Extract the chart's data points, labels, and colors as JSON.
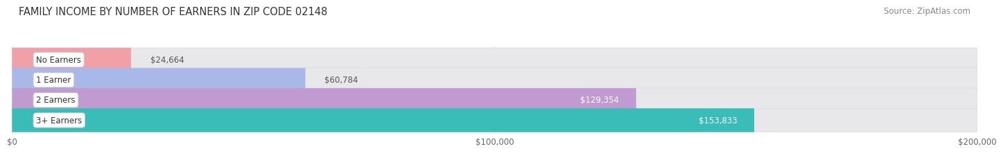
{
  "title": "FAMILY INCOME BY NUMBER OF EARNERS IN ZIP CODE 02148",
  "source": "Source: ZipAtlas.com",
  "categories": [
    "No Earners",
    "1 Earner",
    "2 Earners",
    "3+ Earners"
  ],
  "values": [
    24664,
    60784,
    129354,
    153833
  ],
  "bar_colors": [
    "#f2a0a8",
    "#a8b8e8",
    "#c09ad0",
    "#3abcb8"
  ],
  "label_colors": [
    "#555555",
    "#555555",
    "#ffffff",
    "#ffffff"
  ],
  "value_outside_color": "#555555",
  "xlim": [
    0,
    200000
  ],
  "xticks": [
    0,
    100000,
    200000
  ],
  "xtick_labels": [
    "$0",
    "$100,000",
    "$200,000"
  ],
  "background_color": "#ffffff",
  "bar_bg_color": "#e8e8ea",
  "bar_bg_border_color": "#d8d8dc",
  "title_fontsize": 10.5,
  "source_fontsize": 8.5,
  "label_fontsize": 8.5,
  "tick_fontsize": 8.5,
  "bar_height": 0.62,
  "bar_gap": 0.38
}
